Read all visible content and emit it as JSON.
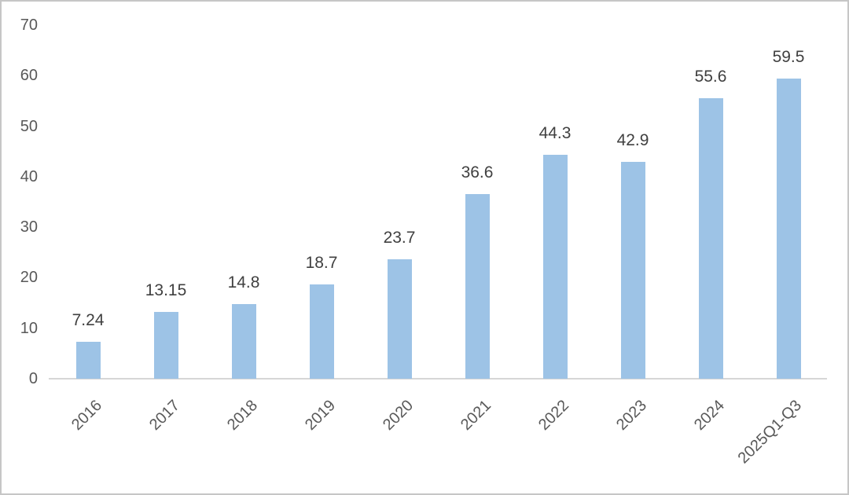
{
  "chart_data": {
    "type": "bar",
    "title": "",
    "xlabel": "",
    "ylabel": "",
    "categories": [
      "2016",
      "2017",
      "2018",
      "2019",
      "2020",
      "2021",
      "2022",
      "2023",
      "2024",
      "2025Q1-Q3"
    ],
    "values": [
      7.24,
      13.15,
      14.8,
      18.7,
      23.7,
      36.6,
      44.3,
      42.9,
      55.6,
      59.5
    ],
    "data_labels": [
      "7.24",
      "13.15",
      "14.8",
      "18.7",
      "23.7",
      "36.6",
      "44.3",
      "42.9",
      "55.6",
      "59.5"
    ],
    "ylim": [
      0,
      70
    ],
    "yticks": [
      0,
      10,
      20,
      30,
      40,
      50,
      60,
      70
    ],
    "grid": false,
    "legend_position": "none",
    "bar_color": "#9DC3E6",
    "axis_line_color": "#D6D6D6",
    "tick_label_color": "#595959",
    "data_label_color": "#404040",
    "x_label_rotation_deg": 45
  }
}
